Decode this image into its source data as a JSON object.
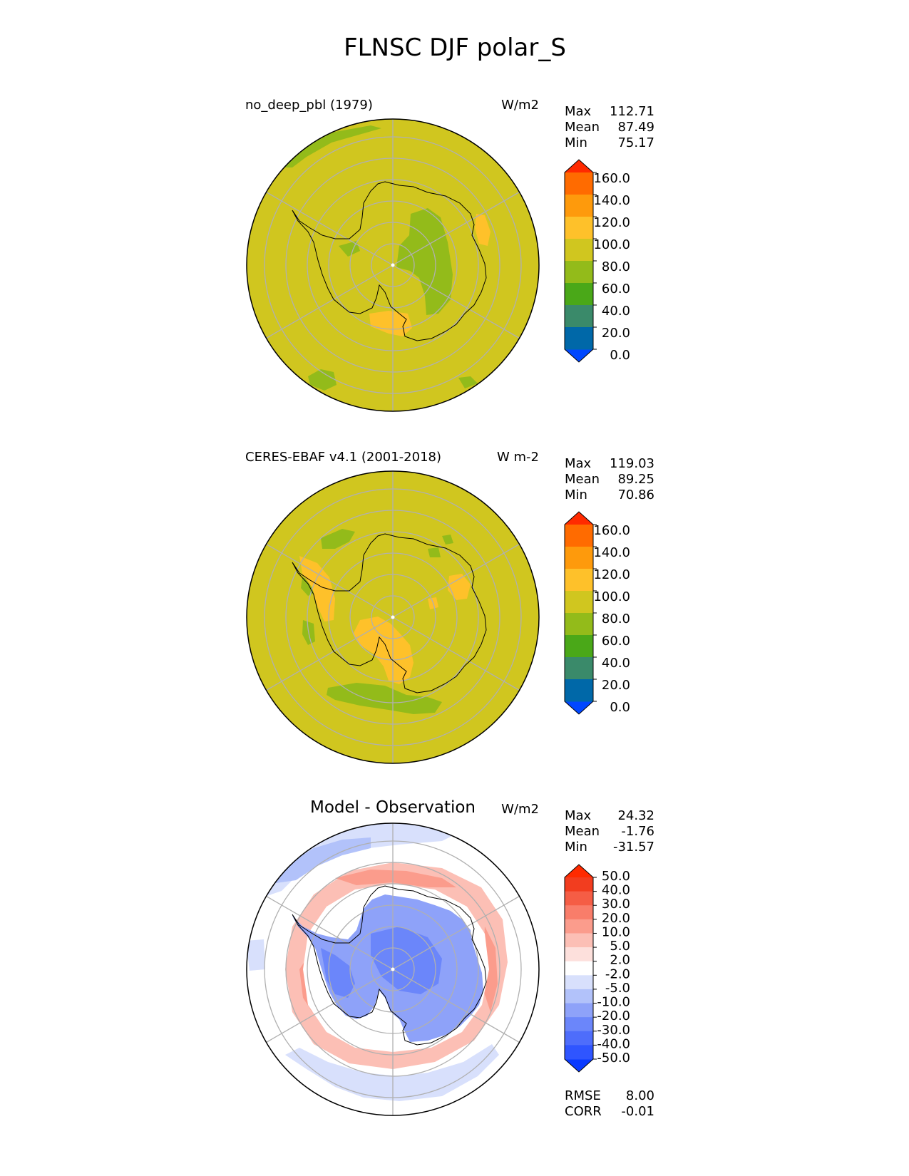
{
  "figure_title": "FLNSC DJF polar_S",
  "colors": {
    "absolute_levels": [
      "#0047ff",
      "#0068a8",
      "#3a8a6a",
      "#4aa818",
      "#93bb1a",
      "#d0c61f",
      "#fec12a",
      "#fe9a0c",
      "#ff6b00",
      "#ff2a00"
    ],
    "diff_levels": [
      "#0a3aff",
      "#2f55ff",
      "#4e6dfb",
      "#6b86fa",
      "#8ea2f9",
      "#b2c2fa",
      "#d8e0fc",
      "#ffffff",
      "#fde0dc",
      "#fcbfb5",
      "#fb9c8c",
      "#f97d6a",
      "#f55d45",
      "#f23d1f",
      "#ff2a00"
    ],
    "grid": "#b0b0b0",
    "coast": "#000000"
  },
  "chart_data": [
    {
      "type": "heatmap",
      "projection": "south polar stereographic",
      "title_left": "no_deep_pbl (1979)",
      "units": "W/m2",
      "stats": [
        {
          "label": "Max",
          "value": "112.71"
        },
        {
          "label": "Mean",
          "value": "87.49"
        },
        {
          "label": "Min",
          "value": "75.17"
        }
      ],
      "colorbar": {
        "levels": [
          -20,
          0,
          20,
          40,
          60,
          80,
          100,
          120,
          140,
          160,
          180
        ],
        "tick_labels": [
          "160.0",
          "140.0",
          "120.0",
          "100.0",
          "80.0",
          "60.0",
          "40.0",
          "20.0",
          "0.0"
        ],
        "extend": "both"
      },
      "dominant_value_range": [
        80,
        100
      ]
    },
    {
      "type": "heatmap",
      "projection": "south polar stereographic",
      "title_left": "CERES-EBAF v4.1 (2001-2018)",
      "units": "W m-2",
      "stats": [
        {
          "label": "Max",
          "value": "119.03"
        },
        {
          "label": "Mean",
          "value": "89.25"
        },
        {
          "label": "Min",
          "value": "70.86"
        }
      ],
      "colorbar": {
        "levels": [
          -20,
          0,
          20,
          40,
          60,
          80,
          100,
          120,
          140,
          160,
          180
        ],
        "tick_labels": [
          "160.0",
          "140.0",
          "120.0",
          "100.0",
          "80.0",
          "60.0",
          "40.0",
          "20.0",
          "0.0"
        ],
        "extend": "both"
      },
      "dominant_value_range": [
        80,
        100
      ]
    },
    {
      "type": "heatmap",
      "projection": "south polar stereographic",
      "title_center": "Model - Observation",
      "units": "W/m2",
      "stats": [
        {
          "label": "Max",
          "value": "24.32"
        },
        {
          "label": "Mean",
          "value": "-1.76"
        },
        {
          "label": "Min",
          "value": "-31.57"
        }
      ],
      "colorbar": {
        "levels": [
          -60,
          -50,
          -40,
          -30,
          -20,
          -10,
          -5,
          -2,
          2,
          5,
          10,
          20,
          30,
          40,
          50,
          60
        ],
        "tick_labels": [
          "50.0",
          "40.0",
          "30.0",
          "20.0",
          "10.0",
          "5.0",
          "2.0",
          "-2.0",
          "-5.0",
          "-10.0",
          "-20.0",
          "-30.0",
          "-40.0",
          "-50.0"
        ],
        "extend": "both"
      },
      "metrics": [
        {
          "label": "RMSE",
          "value": "8.00"
        },
        {
          "label": "CORR",
          "value": "-0.01"
        }
      ]
    }
  ]
}
